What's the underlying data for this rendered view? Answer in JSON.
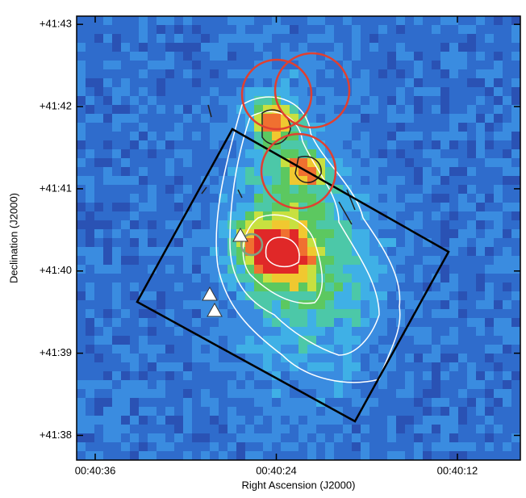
{
  "chart_data": {
    "type": "image",
    "xlabel": "Right Ascension (J2000)",
    "ylabel": "Declination (J2000)",
    "xlim": [
      37.23,
      7.83
    ],
    "xticks": [
      {
        "value": 36,
        "label": "00:40:36"
      },
      {
        "value": 24,
        "label": "00:40:24"
      },
      {
        "value": 12,
        "label": "00:40:12"
      }
    ],
    "ylim": [
      37.7,
      43.1
    ],
    "yticks": [
      {
        "value": 38,
        "label": "+41:38"
      },
      {
        "value": 39,
        "label": "+41:39"
      },
      {
        "value": 40,
        "label": "+41:40"
      },
      {
        "value": 41,
        "label": "+41:41"
      },
      {
        "value": 42,
        "label": "+41:42"
      },
      {
        "value": 43,
        "label": "+41:43"
      }
    ]
  }
}
